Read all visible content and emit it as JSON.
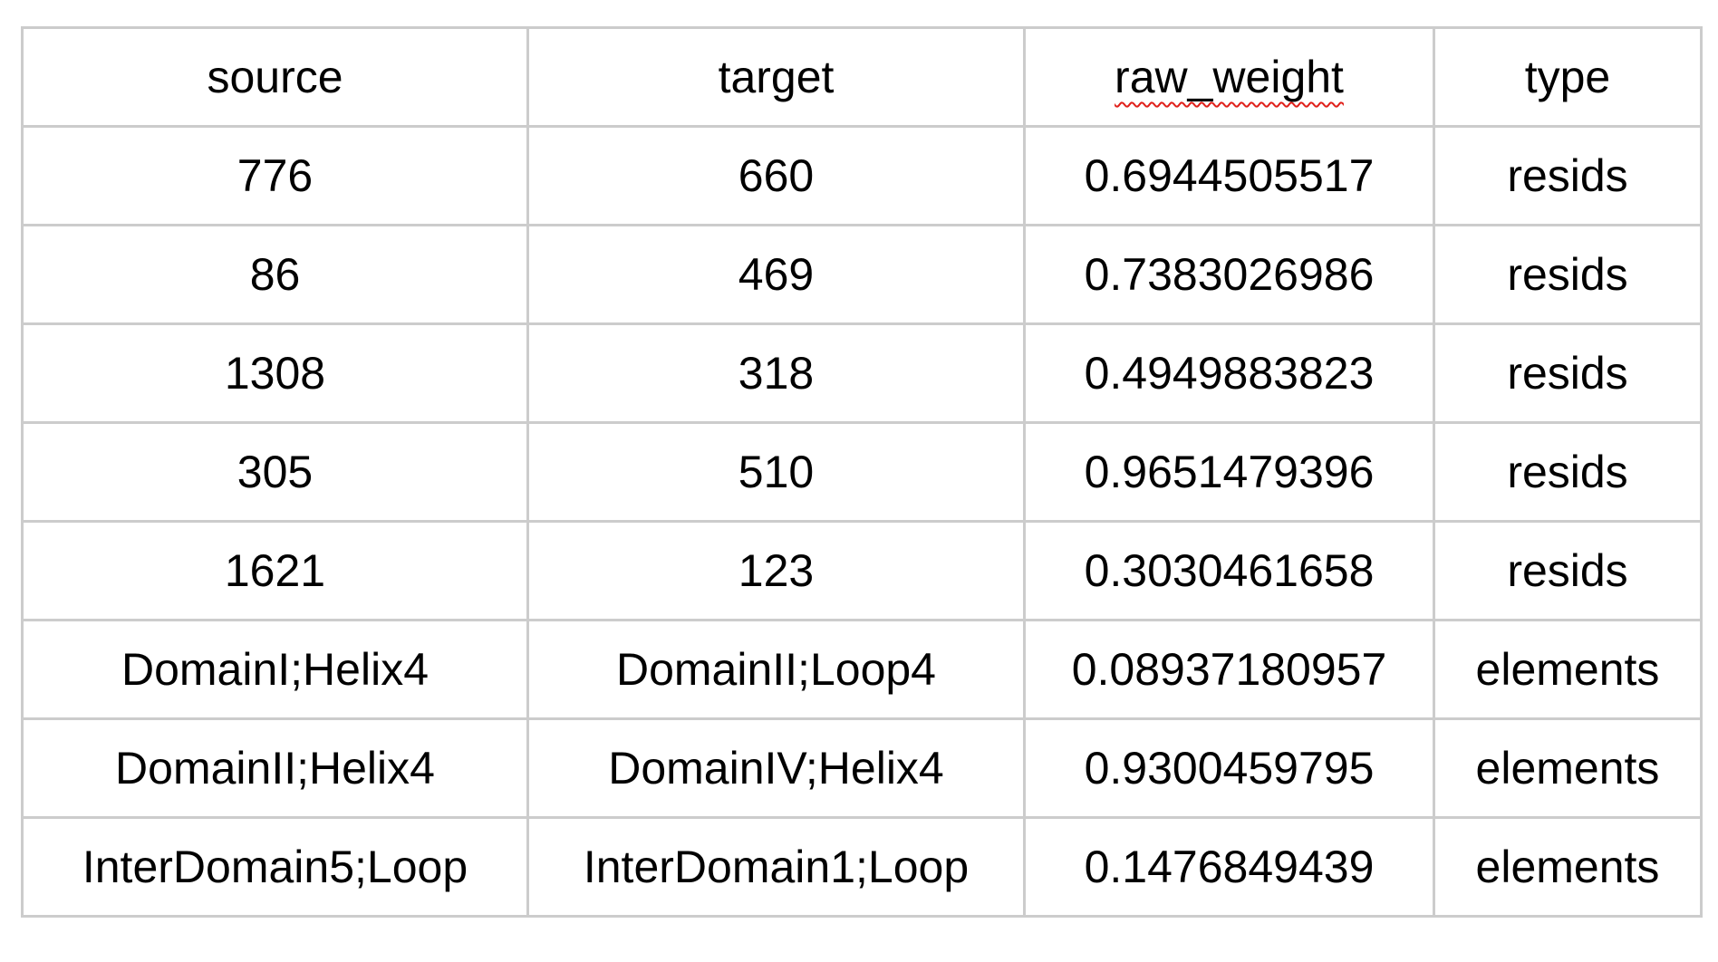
{
  "table": {
    "columns": [
      "source",
      "target",
      "raw_weight",
      "type"
    ],
    "rows": [
      [
        "776",
        "660",
        "0.6944505517",
        "resids"
      ],
      [
        "86",
        "469",
        "0.7383026986",
        "resids"
      ],
      [
        "1308",
        "318",
        "0.4949883823",
        "resids"
      ],
      [
        "305",
        "510",
        "0.9651479396",
        "resids"
      ],
      [
        "1621",
        "123",
        "0.3030461658",
        "resids"
      ],
      [
        "DomainI;Helix4",
        "DomainII;Loop4",
        "0.08937180957",
        "elements"
      ],
      [
        "DomainII;Helix4",
        "DomainIV;Helix4",
        "0.9300459795",
        "elements"
      ],
      [
        "InterDomain5;Loop",
        "InterDomain1;Loop",
        "0.1476849439",
        "elements"
      ]
    ]
  },
  "colors": {
    "grid_border": "#cccccc",
    "spellcheck_underline": "#e0201a",
    "text": "#000000",
    "background": "#ffffff"
  }
}
